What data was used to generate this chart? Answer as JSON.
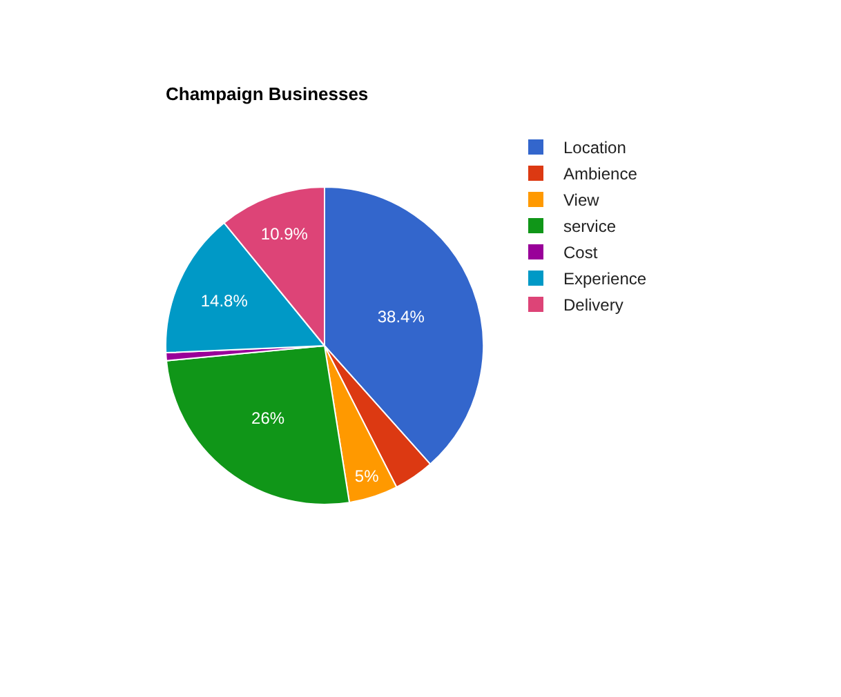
{
  "chart_data": {
    "type": "pie",
    "title": "Champaign Businesses",
    "categories": [
      "Location",
      "Ambience",
      "View",
      "service",
      "Cost",
      "Experience",
      "Delivery"
    ],
    "values": [
      38.4,
      4.1,
      5,
      26,
      0.8,
      14.8,
      10.9
    ],
    "value_labels": [
      "38.4%",
      null,
      "5%",
      "26%",
      null,
      "14.8%",
      "10.9%"
    ],
    "colors": [
      "#3366cc",
      "#dc3912",
      "#ff9900",
      "#109618",
      "#990099",
      "#0099c6",
      "#dd4477"
    ],
    "legend": "right"
  }
}
